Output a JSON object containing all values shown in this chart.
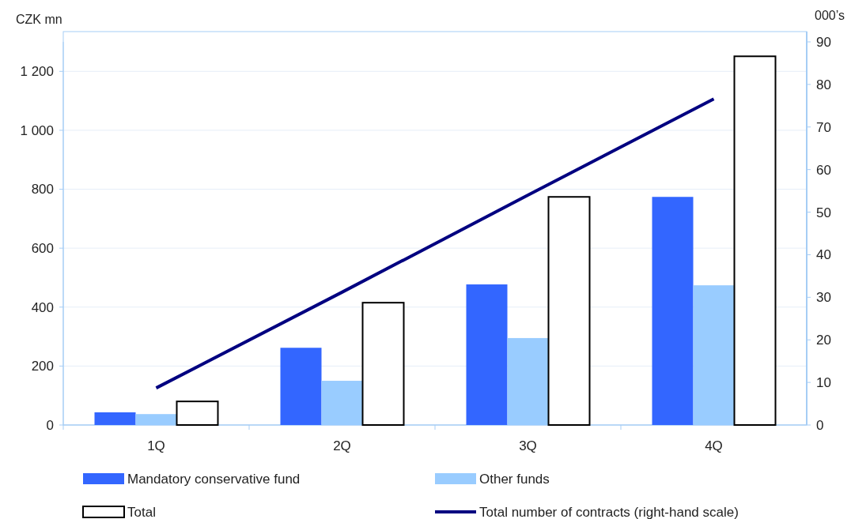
{
  "chart_data": {
    "type": "bar",
    "ylabel": "CZK mn",
    "y2label": "000’s",
    "categories": [
      "1Q",
      "2Q",
      "3Q",
      "4Q"
    ],
    "series": [
      {
        "name": "Mandatory conservative fund",
        "color": "#3366ff",
        "values": [
          43,
          262,
          477,
          774
        ]
      },
      {
        "name": "Other funds",
        "color": "#99ccff",
        "values": [
          37,
          150,
          295,
          474
        ]
      },
      {
        "name": "Total",
        "color": "#ffffff",
        "values": [
          80,
          415,
          774,
          1251
        ]
      },
      {
        "name": "Total number of contracts (right-hand scale)",
        "type": "line",
        "axis": "y2",
        "color": "#000080",
        "values": [
          8.7,
          31.2,
          54,
          76.6
        ]
      }
    ],
    "ylim": [
      0,
      1300
    ],
    "yticks": [
      0,
      200,
      400,
      600,
      800,
      {
        "value": 1000,
        "label": "1 000"
      },
      {
        "value": 1200,
        "label": "1 200"
      }
    ],
    "y2lim": [
      0,
      90
    ],
    "y2ticks": [
      0,
      10,
      20,
      30,
      40,
      50,
      60,
      70,
      80,
      90
    ],
    "grid": "y",
    "legend": "bottom",
    "marker": "none",
    "line_style": "solid"
  }
}
